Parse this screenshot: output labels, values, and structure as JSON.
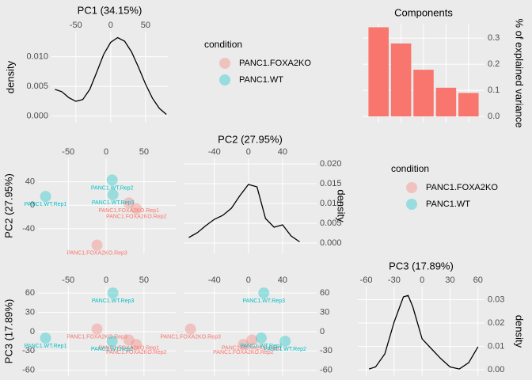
{
  "chart_data": [
    {
      "type": "density",
      "title": "PC1 (34.15%)",
      "y_label": "density",
      "y_axis_side": "left",
      "x_axis_side": "top",
      "color": "#000000",
      "x": [
        -80,
        -70,
        -60,
        -50,
        -40,
        -30,
        -20,
        -10,
        0,
        10,
        20,
        30,
        40,
        50,
        60,
        70,
        80
      ],
      "values": [
        0.0045,
        0.0041,
        0.0031,
        0.0025,
        0.0028,
        0.0045,
        0.0074,
        0.0104,
        0.0124,
        0.0132,
        0.0126,
        0.0108,
        0.0082,
        0.0054,
        0.003,
        0.0013,
        0.0003
      ],
      "xlim": [
        -85,
        82
      ],
      "xticks": [
        -50,
        0,
        50
      ],
      "ylim": [
        -0.0011,
        0.0142
      ],
      "yticks": [
        {
          "value": 0,
          "label": "0.000"
        },
        {
          "value": 0.005,
          "label": "0.005"
        },
        {
          "value": 0.01,
          "label": "0.010"
        }
      ],
      "grid": true
    },
    {
      "type": "legend",
      "title": "condition",
      "series": [
        {
          "name": "PANC1.FOXA2KO",
          "color": "#F8766D"
        },
        {
          "name": "PANC1.WT",
          "color": "#00BFC4"
        }
      ]
    },
    {
      "type": "bar",
      "title": "Components",
      "y_label": "% of explained variance",
      "y_axis_side": "right",
      "color": "#F8766D",
      "categories": [
        null,
        null,
        null,
        null,
        null
      ],
      "values": [
        0.3415,
        0.2795,
        0.1789,
        0.11,
        0.09
      ],
      "ylim": [
        -0.024,
        0.355
      ],
      "yticks": [
        {
          "value": 0,
          "label": "0.0"
        },
        0.1,
        0.2,
        0.3
      ],
      "grid": true
    },
    {
      "type": "scatter",
      "y_label": "PC2 (27.95%)",
      "y_axis_side": "left",
      "x_axis_side": "top",
      "xlim": [
        -90,
        92
      ],
      "xticks": [
        -50,
        0,
        50
      ],
      "ylim": [
        -82,
        80
      ],
      "yticks": [
        -40,
        0,
        40
      ],
      "grid": true,
      "series": [
        {
          "name": "PANC1.FOXA2KO",
          "color": "#F8766D",
          "labels": [
            "PANC1.FOXA2KO.Rep1",
            "PANC1.FOXA2KO.Rep2",
            "PANC1.FOXA2KO.Rep3"
          ],
          "x": [
            30,
            40,
            -12
          ],
          "values": [
            4,
            -6,
            -68
          ]
        },
        {
          "name": "PANC1.WT",
          "color": "#00BFC4",
          "labels": [
            "PANC1.WT.Rep1",
            "PANC1.WT.Rep2",
            "PANC1.WT.Rep3"
          ],
          "x": [
            -80,
            8,
            9
          ],
          "values": [
            15,
            43,
            18
          ]
        }
      ]
    },
    {
      "type": "density",
      "title": "PC2 (27.95%)",
      "y_label": "density",
      "y_axis_side": "right",
      "x_axis_side": "top",
      "color": "#000000",
      "x": [
        -70,
        -60,
        -50,
        -40,
        -30,
        -20,
        -10,
        0,
        10,
        20,
        30,
        40,
        50,
        60
      ],
      "values": [
        0.0014,
        0.0026,
        0.0044,
        0.006,
        0.007,
        0.0088,
        0.012,
        0.0148,
        0.0142,
        0.0062,
        0.004,
        0.0046,
        0.0018,
        0.0003
      ],
      "xlim": [
        -76,
        80
      ],
      "xticks": [
        -40,
        0,
        40
      ],
      "ylim": [
        -0.0026,
        0.0214
      ],
      "yticks": [
        {
          "value": 0,
          "label": "0.000"
        },
        {
          "value": 0.005,
          "label": "0.005"
        },
        {
          "value": 0.01,
          "label": "0.010"
        },
        {
          "value": 0.015,
          "label": "0.015"
        },
        {
          "value": 0.02,
          "label": "0.020"
        }
      ],
      "grid": true
    },
    {
      "type": "legend",
      "title": "condition",
      "series": [
        {
          "name": "PANC1.FOXA2KO",
          "color": "#F8766D"
        },
        {
          "name": "PANC1.WT",
          "color": "#00BFC4"
        }
      ]
    },
    {
      "type": "scatter",
      "y_label": "PC3 (17.89%)",
      "y_axis_side": "left",
      "x_axis_side": "top",
      "xlim": [
        -90,
        92
      ],
      "xticks": [
        -50,
        0,
        50
      ],
      "ylim": [
        -69,
        70
      ],
      "yticks": [
        -60,
        -30,
        0,
        30,
        60
      ],
      "grid": true,
      "series": [
        {
          "name": "PANC1.FOXA2KO",
          "color": "#F8766D",
          "labels": [
            "PANC1.FOXA2KO.Rep1",
            "PANC1.FOXA2KO.Rep2",
            "PANC1.FOXA2KO.Rep3"
          ],
          "x": [
            30,
            40,
            -12
          ],
          "values": [
            -13,
            -20,
            4
          ]
        },
        {
          "name": "PANC1.WT",
          "color": "#00BFC4",
          "labels": [
            "PANC1.WT.Rep1",
            "PANC1.WT.Rep2",
            "PANC1.WT.Rep3"
          ],
          "x": [
            -80,
            8,
            9
          ],
          "values": [
            -10,
            -15,
            60
          ]
        }
      ]
    },
    {
      "type": "scatter",
      "y_axis_side": "right",
      "x_axis_side": "top",
      "xlim": [
        -76,
        80
      ],
      "xticks": [
        -40,
        0,
        40
      ],
      "ylim": [
        -69,
        70
      ],
      "yticks": [
        -60,
        -30,
        0,
        30,
        60
      ],
      "grid": true,
      "series": [
        {
          "name": "PANC1.FOXA2KO",
          "color": "#F8766D",
          "labels": [
            "PANC1.FOXA2KO.Rep1",
            "PANC1.FOXA2KO.Rep2",
            "PANC1.FOXA2KO.Rep3"
          ],
          "x": [
            4,
            -6,
            -68
          ],
          "values": [
            -13,
            -20,
            4
          ]
        },
        {
          "name": "PANC1.WT",
          "color": "#00BFC4",
          "labels": [
            "PANC1.WT.Rep1",
            "PANC1.WT.Rep2",
            "PANC1.WT.Rep3"
          ],
          "x": [
            15,
            43,
            18
          ],
          "values": [
            -10,
            -15,
            60
          ]
        }
      ]
    },
    {
      "type": "density",
      "title": "PC3 (17.89%)",
      "y_label": "density",
      "y_axis_side": "right",
      "x_axis_side": "top",
      "color": "#000000",
      "x": [
        -57,
        -50,
        -40,
        -30,
        -20,
        -15,
        -10,
        0,
        10,
        20,
        30,
        40,
        50,
        60
      ],
      "values": [
        0.0003,
        0.0012,
        0.0068,
        0.0205,
        0.0312,
        0.0318,
        0.027,
        0.0132,
        0.009,
        0.0048,
        0.0012,
        0.0003,
        0.003,
        0.0098
      ],
      "xlim": [
        -69,
        67
      ],
      "xticks": [
        -60,
        -30,
        0,
        30,
        60
      ],
      "ylim": [
        -0.0027,
        0.0356
      ],
      "yticks": [
        {
          "value": 0,
          "label": "0.00"
        },
        {
          "value": 0.01,
          "label": "0.01"
        },
        {
          "value": 0.02,
          "label": "0.02"
        },
        {
          "value": 0.03,
          "label": "0.03"
        }
      ],
      "grid": true
    }
  ]
}
